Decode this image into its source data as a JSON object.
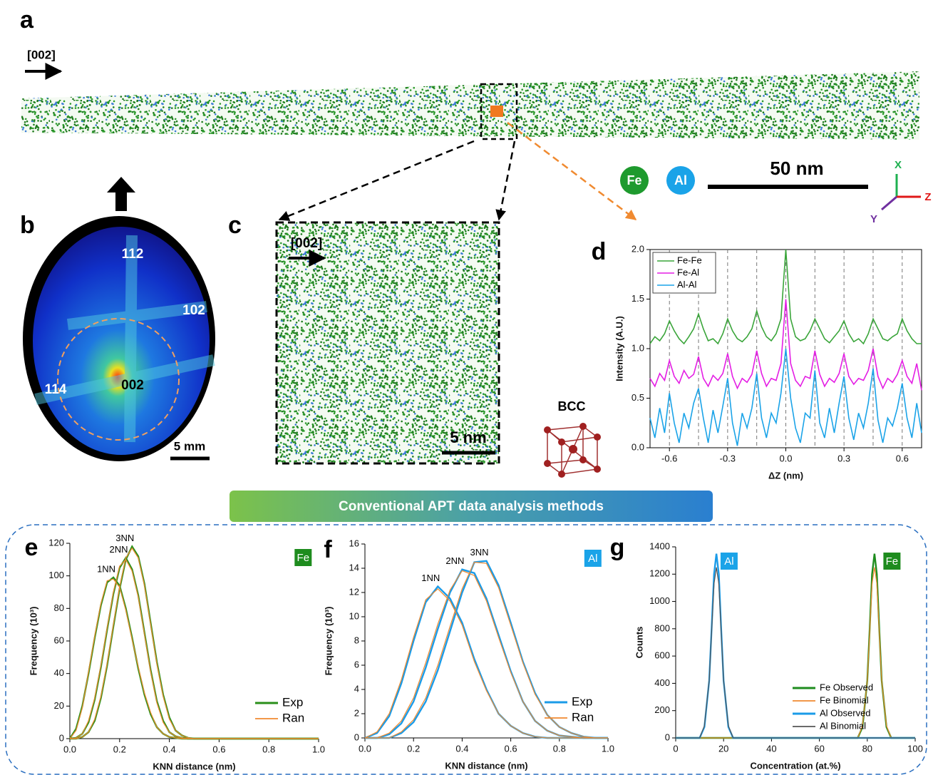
{
  "panel_labels": [
    "a",
    "b",
    "c"
  ],
  "rod": {
    "direction": "[002]",
    "atoms": [
      "Fe",
      "Al"
    ],
    "scale": "50 nm",
    "axes": [
      "X",
      "Y",
      "Z"
    ]
  },
  "pole_figure": {
    "poles": [
      "112",
      "102",
      "114",
      "002"
    ],
    "scale": "5 mm"
  },
  "slice": {
    "direction": "[002]",
    "scale": "5 nm"
  },
  "crystal": "BCC",
  "banner": "Conventional APT data analysis methods",
  "chart_data": [
    {
      "type": "line",
      "panel": "d",
      "xlabel": "ΔZ (nm)",
      "ylabel": "Intensity (A.U.)",
      "x": [
        -0.7,
        -0.675,
        -0.65,
        -0.625,
        -0.6,
        -0.575,
        -0.55,
        -0.525,
        -0.5,
        -0.475,
        -0.45,
        -0.425,
        -0.4,
        -0.375,
        -0.35,
        -0.325,
        -0.3,
        -0.275,
        -0.25,
        -0.225,
        -0.2,
        -0.175,
        -0.15,
        -0.125,
        -0.1,
        -0.075,
        -0.05,
        -0.025,
        0,
        0.025,
        0.05,
        0.075,
        0.1,
        0.125,
        0.15,
        0.175,
        0.2,
        0.225,
        0.25,
        0.275,
        0.3,
        0.325,
        0.35,
        0.375,
        0.4,
        0.425,
        0.45,
        0.475,
        0.5,
        0.525,
        0.55,
        0.575,
        0.6,
        0.625,
        0.65,
        0.675,
        0.7
      ],
      "series": [
        {
          "name": "Fe-Fe",
          "color": "#3aa53a",
          "width": 1.6,
          "values": [
            1.05,
            1.12,
            1.08,
            1.15,
            1.28,
            1.18,
            1.1,
            1.05,
            1.12,
            1.2,
            1.35,
            1.2,
            1.08,
            1.1,
            1.05,
            1.15,
            1.3,
            1.18,
            1.1,
            1.07,
            1.12,
            1.2,
            1.38,
            1.22,
            1.12,
            1.08,
            1.15,
            1.3,
            2.0,
            1.3,
            1.12,
            1.08,
            1.1,
            1.18,
            1.3,
            1.2,
            1.1,
            1.06,
            1.12,
            1.18,
            1.28,
            1.15,
            1.07,
            1.1,
            1.05,
            1.15,
            1.3,
            1.2,
            1.1,
            1.08,
            1.12,
            1.15,
            1.3,
            1.18,
            1.1,
            1.05,
            1.05
          ]
        },
        {
          "name": "Fe-Al",
          "color": "#e41ee4",
          "width": 1.6,
          "values": [
            0.7,
            0.62,
            0.75,
            0.68,
            0.88,
            0.72,
            0.65,
            0.78,
            0.7,
            0.74,
            0.92,
            0.7,
            0.62,
            0.73,
            0.68,
            0.75,
            0.95,
            0.72,
            0.6,
            0.7,
            0.66,
            0.74,
            0.98,
            0.75,
            0.62,
            0.7,
            0.68,
            0.85,
            1.5,
            0.85,
            0.68,
            0.62,
            0.72,
            0.7,
            0.98,
            0.74,
            0.62,
            0.7,
            0.66,
            0.75,
            0.95,
            0.72,
            0.64,
            0.7,
            0.68,
            0.78,
            1.0,
            0.72,
            0.6,
            0.7,
            0.66,
            0.74,
            0.88,
            0.72,
            0.65,
            0.85,
            0.58
          ]
        },
        {
          "name": "Al-Al",
          "color": "#1aa3e8",
          "width": 1.6,
          "values": [
            0.3,
            0.1,
            0.4,
            0.15,
            0.55,
            0.25,
            0.05,
            0.35,
            0.2,
            0.45,
            0.6,
            0.3,
            0.05,
            0.38,
            0.15,
            0.42,
            0.7,
            0.25,
            0.02,
            0.35,
            0.2,
            0.4,
            0.75,
            0.3,
            0.1,
            0.35,
            0.25,
            0.55,
            1.0,
            0.5,
            0.2,
            0.05,
            0.35,
            0.3,
            0.78,
            0.25,
            0.1,
            0.4,
            0.15,
            0.45,
            0.72,
            0.3,
            0.08,
            0.35,
            0.2,
            0.45,
            0.8,
            0.28,
            0.05,
            0.3,
            0.22,
            0.4,
            0.65,
            0.3,
            0.1,
            0.45,
            0.15
          ]
        }
      ],
      "vlines": [
        -0.6,
        -0.45,
        -0.3,
        -0.15,
        0,
        0.15,
        0.3,
        0.45,
        0.6
      ],
      "xlim": [
        -0.7,
        0.7
      ],
      "xticks": [
        -0.6,
        -0.3,
        {
          "value": 0,
          "label": "0.0"
        },
        0.3,
        0.6
      ],
      "ylim": [
        0,
        2
      ],
      "yticks": [
        {
          "value": 0,
          "label": "0.0"
        },
        0.5,
        {
          "value": 1,
          "label": "1.0"
        },
        1.5,
        {
          "value": 2,
          "label": "2.0"
        }
      ],
      "legend": "upper left"
    },
    {
      "type": "line",
      "panel": "e",
      "xlabel": "KNN distance (nm)",
      "ylabel": "Frequency (10³)",
      "badges": [
        {
          "text": "Fe",
          "color": "#1e8c1e"
        }
      ],
      "x": [
        0,
        0.025,
        0.05,
        0.075,
        0.1,
        0.125,
        0.15,
        0.175,
        0.2,
        0.225,
        0.25,
        0.275,
        0.3,
        0.325,
        0.35,
        0.375,
        0.4,
        0.425,
        0.45,
        0.475,
        0.5,
        0.6,
        0.8,
        1.0
      ],
      "series": [
        {
          "name": "Exp",
          "color": "#2a8f1a",
          "width": 2.4,
          "curves": [
            {
              "label": "1NN",
              "values": [
                0,
                6,
                20,
                40,
                62,
                82,
                96,
                99,
                94,
                80,
                62,
                43,
                27,
                15,
                7,
                3,
                1,
                0.5,
                0,
                0,
                0,
                0,
                0,
                0
              ]
            },
            {
              "label": "2NN",
              "values": [
                0,
                0.5,
                3,
                10,
                24,
                44,
                67,
                89,
                105,
                111,
                104,
                88,
                65,
                42,
                23,
                11,
                4,
                1.5,
                0.5,
                0,
                0,
                0,
                0,
                0
              ]
            },
            {
              "label": "3NN",
              "values": [
                0,
                0,
                1,
                4,
                11,
                25,
                45,
                69,
                92,
                110,
                118,
                112,
                95,
                71,
                47,
                27,
                13,
                5,
                2,
                0.5,
                0,
                0,
                0,
                0
              ]
            }
          ]
        },
        {
          "name": "Ran",
          "color": "#f08a30",
          "width": 1.2,
          "curves": [
            {
              "values": [
                0,
                5,
                19,
                41,
                63,
                83,
                97,
                98,
                93,
                79,
                61,
                44,
                28,
                16,
                7,
                3,
                1,
                0.5,
                0,
                0,
                0,
                0,
                0,
                0
              ]
            },
            {
              "values": [
                0,
                0.4,
                3,
                11,
                25,
                45,
                68,
                90,
                106,
                110,
                103,
                87,
                64,
                41,
                22,
                10,
                4,
                1.5,
                0.5,
                0,
                0,
                0,
                0,
                0
              ]
            },
            {
              "values": [
                0,
                0,
                1,
                4,
                12,
                26,
                46,
                70,
                93,
                111,
                117,
                111,
                94,
                70,
                46,
                26,
                12,
                5,
                2,
                0.5,
                0,
                0,
                0,
                0
              ]
            }
          ]
        }
      ],
      "xlim": [
        0,
        1
      ],
      "xticks": [
        {
          "value": 0,
          "label": "0.0"
        },
        0.2,
        0.4,
        0.6,
        0.8,
        {
          "value": 1,
          "label": "1.0"
        }
      ],
      "ylim": [
        0,
        120
      ],
      "yticks": [
        0,
        20,
        40,
        60,
        80,
        100,
        120
      ],
      "legend": "lower right"
    },
    {
      "type": "line",
      "panel": "f",
      "xlabel": "KNN distance (nm)",
      "ylabel": "Frequency (10³)",
      "badges": [
        {
          "text": "Al",
          "color": "#1aa3e8"
        }
      ],
      "x": [
        0,
        0.05,
        0.1,
        0.15,
        0.2,
        0.25,
        0.3,
        0.35,
        0.4,
        0.45,
        0.5,
        0.55,
        0.6,
        0.65,
        0.7,
        0.75,
        0.8,
        0.85,
        0.9,
        0.95,
        1.0
      ],
      "series": [
        {
          "name": "Exp",
          "color": "#1a9be8",
          "width": 2.4,
          "curves": [
            {
              "label": "1NN",
              "values": [
                0,
                0.4,
                1.8,
                4.5,
                8,
                11.2,
                12.5,
                11.5,
                9.5,
                6.5,
                4,
                2,
                1,
                0.4,
                0.1,
                0,
                0,
                0,
                0,
                0,
                0
              ]
            },
            {
              "label": "2NN",
              "values": [
                0,
                0,
                0.3,
                1.2,
                3,
                5.8,
                9,
                12,
                13.9,
                13.6,
                11.5,
                8.5,
                5.5,
                3,
                1.4,
                0.6,
                0.2,
                0.1,
                0,
                0,
                0
              ]
            },
            {
              "label": "3NN",
              "values": [
                0,
                0,
                0,
                0.4,
                1.3,
                3,
                5.6,
                8.8,
                12,
                14.5,
                14.6,
                12.6,
                9.5,
                6.3,
                3.7,
                1.9,
                0.9,
                0.4,
                0.1,
                0,
                0
              ]
            }
          ]
        },
        {
          "name": "Ran",
          "color": "#f08a30",
          "width": 1.2,
          "curves": [
            {
              "values": [
                0,
                0.5,
                2,
                4.8,
                8.3,
                11.4,
                12.3,
                11.3,
                9.3,
                6.3,
                3.9,
                2,
                1,
                0.4,
                0.1,
                0,
                0,
                0,
                0,
                0,
                0
              ]
            },
            {
              "values": [
                0,
                0,
                0.4,
                1.4,
                3.3,
                6.2,
                9.4,
                12.2,
                13.8,
                13.4,
                11.3,
                8.3,
                5.4,
                3,
                1.4,
                0.6,
                0.2,
                0.1,
                0,
                0,
                0
              ]
            },
            {
              "values": [
                0,
                0,
                0,
                0.5,
                1.5,
                3.3,
                6,
                9.2,
                12.3,
                14.5,
                14.4,
                12.4,
                9.3,
                6.2,
                3.6,
                1.9,
                0.9,
                0.4,
                0.1,
                0,
                0
              ]
            }
          ]
        }
      ],
      "xlim": [
        0,
        1
      ],
      "xticks": [
        {
          "value": 0,
          "label": "0.0"
        },
        0.2,
        0.4,
        0.6,
        0.8,
        {
          "value": 1,
          "label": "1.0"
        }
      ],
      "ylim": [
        0,
        16
      ],
      "yticks": [
        0,
        2,
        4,
        6,
        8,
        10,
        12,
        14,
        16
      ],
      "legend": "lower right"
    },
    {
      "type": "line",
      "panel": "g",
      "xlabel": "Concentration (at.%)",
      "ylabel": "Counts",
      "badges": [
        {
          "text": "Al",
          "color": "#1aa3e8"
        },
        {
          "text": "Fe",
          "color": "#1e8c1e"
        }
      ],
      "x": [
        0,
        10,
        12,
        14,
        15,
        16,
        17,
        18,
        19,
        20,
        22,
        24,
        30,
        76,
        78,
        80,
        81,
        82,
        83,
        84,
        85,
        86,
        88,
        90,
        100
      ],
      "series": [
        {
          "name": "Fe Observed",
          "color": "#1e8c1e",
          "width": 2.4,
          "values": [
            0,
            0,
            0,
            0,
            0,
            0,
            0,
            0,
            0,
            0,
            0,
            0,
            0,
            0,
            80,
            420,
            800,
            1200,
            1350,
            1200,
            800,
            420,
            80,
            0,
            0
          ]
        },
        {
          "name": "Fe Binomial",
          "color": "#f08a30",
          "width": 1.2,
          "values": [
            0,
            0,
            0,
            0,
            0,
            0,
            0,
            0,
            0,
            0,
            0,
            0,
            0,
            0,
            90,
            420,
            780,
            1130,
            1250,
            1130,
            780,
            420,
            90,
            0,
            0
          ]
        },
        {
          "name": "Al Observed",
          "color": "#1a9be8",
          "width": 2.4,
          "values": [
            0,
            0,
            80,
            420,
            800,
            1200,
            1350,
            1200,
            800,
            420,
            80,
            0,
            0,
            0,
            0,
            0,
            0,
            0,
            0,
            0,
            0,
            0,
            0,
            0,
            0
          ]
        },
        {
          "name": "Al Binomial",
          "color": "#555555",
          "width": 1.2,
          "values": [
            0,
            0,
            90,
            420,
            780,
            1130,
            1250,
            1130,
            780,
            420,
            90,
            0,
            0,
            0,
            0,
            0,
            0,
            0,
            0,
            0,
            0,
            0,
            0,
            0,
            0
          ]
        }
      ],
      "xlim": [
        0,
        100
      ],
      "xticks": [
        0,
        20,
        40,
        60,
        80,
        100
      ],
      "ylim": [
        0,
        1400
      ],
      "yticks": [
        0,
        200,
        400,
        600,
        800,
        1000,
        1200,
        1400
      ],
      "legend": "lower center"
    }
  ]
}
